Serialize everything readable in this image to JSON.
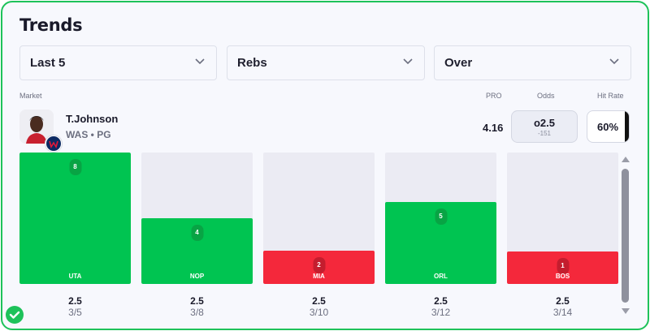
{
  "title": "Trends",
  "filters": [
    {
      "label": "Last 5"
    },
    {
      "label": "Rebs"
    },
    {
      "label": "Over"
    }
  ],
  "headers": {
    "market": "Market",
    "pro": "PRO",
    "odds": "Odds",
    "hit_rate": "Hit Rate"
  },
  "player": {
    "name": "T.Johnson",
    "team_pos": "WAS • PG",
    "avatar_icon": "player-photo",
    "team_logo_icon": "wizards-logo"
  },
  "pro_value": "4.16",
  "odds": {
    "line": "o2.5",
    "price": "-151"
  },
  "hit_rate": "60%",
  "colors": {
    "hit": "#00c451",
    "miss": "#f4283b",
    "accent": "#1ec25a"
  },
  "chart_data": {
    "type": "bar",
    "categories": [
      "UTA",
      "NOP",
      "MIA",
      "ORL",
      "BOS"
    ],
    "values": [
      8,
      4,
      2,
      5,
      1
    ],
    "lines": [
      "2.5",
      "2.5",
      "2.5",
      "2.5",
      "2.5"
    ],
    "dates": [
      "3/5",
      "3/8",
      "3/10",
      "3/12",
      "3/14"
    ],
    "line_value": 2.5,
    "ylim": [
      0,
      8
    ]
  }
}
